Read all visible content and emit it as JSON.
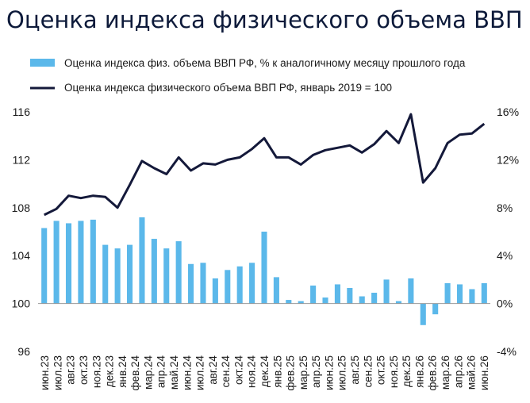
{
  "chart_data": {
    "type": "bar+line",
    "title": "Оценка индекса физического объема ВВП",
    "categories": [
      "июн.23",
      "июл.23",
      "авг.23",
      "сен.23",
      "окт.23",
      "ноя.23",
      "дек.23",
      "янв.24",
      "фев.24",
      "мар.24",
      "апр.24",
      "май.24",
      "июн.24",
      "июл.24",
      "авг.24",
      "сен.24",
      "окт.24",
      "ноя.24",
      "дек.24",
      "янв.25",
      "фев.25",
      "мар.25",
      "апр.25",
      "май.25",
      "июн.25",
      "июл.25",
      "авг.25",
      "сен.25",
      "окт.25",
      "ноя.25",
      "дек.25",
      "янв.26",
      "фев.26",
      "мар.26",
      "апр.26",
      "май.26",
      "июн.26"
    ],
    "xtick_labels": [
      "июн.23",
      "июл.23",
      "авг.23",
      "окт.23",
      "ноя.23",
      "дек.23",
      "янв.24",
      "фев.24",
      "мар.24",
      "апр.24",
      "май.24",
      "июн.24",
      "июл.24",
      "авг.24",
      "сен.24",
      "окт.24",
      "ноя.24",
      "дек.24",
      "янв.25",
      "фев.25",
      "мар.25",
      "апр.25",
      "июн.25",
      "июл.25",
      "авг.25",
      "сен.25",
      "окт.25",
      "ноя.25",
      "дек.25",
      "янв.26",
      "фев.26",
      "мар.26",
      "апр.26",
      "май.26",
      "июн.26"
    ],
    "series": [
      {
        "name": "Оценка индекса физ. объема ВВП РФ, % к аналогичному месяцу прошлого года",
        "kind": "bar",
        "axis": "right",
        "color": "#5bb8ea",
        "values": [
          6.3,
          6.9,
          6.7,
          6.9,
          7.0,
          4.9,
          4.6,
          4.9,
          7.2,
          5.4,
          4.6,
          5.2,
          3.3,
          3.4,
          2.1,
          2.8,
          3.1,
          3.4,
          6.0,
          2.2,
          0.3,
          0.2,
          1.5,
          0.5,
          1.6,
          1.3,
          0.6,
          0.9,
          2.0,
          0.2,
          2.1,
          -1.8,
          -0.9,
          1.7,
          1.6,
          1.2,
          1.7
        ]
      },
      {
        "name": "Оценка индекса физического объема ВВП РФ, январь 2019 = 100",
        "kind": "line",
        "axis": "left",
        "color": "#14193a",
        "values": [
          107.4,
          107.9,
          109.0,
          108.8,
          109.0,
          108.9,
          108.0,
          109.9,
          111.9,
          111.3,
          110.8,
          112.2,
          111.1,
          111.7,
          111.6,
          112.0,
          112.2,
          112.9,
          113.8,
          112.2,
          112.2,
          111.6,
          112.4,
          112.8,
          113.0,
          113.2,
          112.6,
          113.3,
          114.4,
          113.4,
          115.8,
          110.1,
          111.3,
          113.4,
          114.1,
          114.2,
          115.0
        ]
      }
    ],
    "y_left": {
      "min": 96,
      "max": 116,
      "ticks": [
        96,
        100,
        104,
        108,
        112,
        116
      ]
    },
    "y_right": {
      "min": -4,
      "max": 16,
      "ticks": [
        "-4%",
        "0%",
        "4%",
        "8%",
        "12%",
        "16%"
      ]
    },
    "legend_position": "top",
    "grid": false
  }
}
